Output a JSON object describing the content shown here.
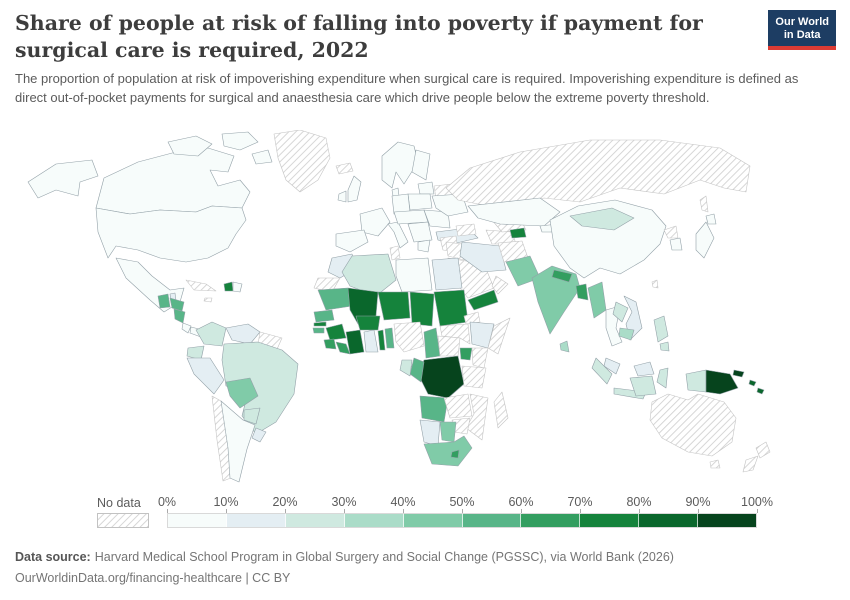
{
  "header": {
    "title": "Share of people at risk of falling into poverty if payment for surgical care is required, 2022",
    "subtitle": "The proportion of population at risk of impoverishing expenditure when surgical care is required. Impoverishing expenditure is defined as direct out-of-pocket payments for surgical and anaesthesia care which drive people below the extreme poverty threshold."
  },
  "logo": {
    "line1": "Our World",
    "line2": "in Data",
    "bg": "#1d3d63",
    "accent": "#dc3b33"
  },
  "legend": {
    "no_data_label": "No data",
    "tick_labels": [
      "0%",
      "10%",
      "20%",
      "30%",
      "40%",
      "50%",
      "60%",
      "70%",
      "80%",
      "90%",
      "100%"
    ],
    "colors": [
      "#f7fcfb",
      "#e4eef3",
      "#cfe9e0",
      "#aadcc8",
      "#80cba8",
      "#58b588",
      "#339e60",
      "#15833c",
      "#0a672c",
      "#06441d"
    ]
  },
  "footer": {
    "source_label": "Data source:",
    "source_text": "Harvard Medical School Program in Global Surgery and Social Change (PGSSC), via World Bank (2026)",
    "link_text": "OurWorldinData.org/financing-healthcare | CC BY"
  },
  "chart_data": {
    "type": "choropleth",
    "title": "Share of people at risk of falling into poverty if payment for surgical care is required",
    "year": 2022,
    "unit": "%",
    "legend_bins": [
      0,
      10,
      20,
      30,
      40,
      50,
      60,
      70,
      80,
      90,
      100
    ],
    "countries": {
      "United States": 2,
      "Canada": 2,
      "Greenland": null,
      "Iceland": null,
      "Mexico": 5,
      "Belize": 15,
      "Guatemala": 52,
      "Honduras": 52,
      "Nicaragua": 52,
      "Costa Rica": 8,
      "Panama": 8,
      "Cuba": null,
      "Jamaica": null,
      "Haiti": 75,
      "Dominican Republic": 3,
      "Colombia": 22,
      "Venezuela": 12,
      "Guyana": null,
      "Ecuador": 25,
      "Peru": 12,
      "Brazil": 25,
      "Bolivia": 45,
      "Paraguay": 25,
      "Uruguay": 15,
      "Chile": null,
      "Argentina": 3,
      "United Kingdom": 2,
      "Ireland": 2,
      "Norway": 1,
      "Sweden": 1,
      "Finland": 1,
      "Denmark": 1,
      "Baltic states": 3,
      "Belarus": null,
      "Poland": 2,
      "Germany": 1,
      "France": 2,
      "Spain": 2,
      "Italy": 2,
      "Central Europe": 2,
      "Balkans": 3,
      "Romania": 3,
      "Ukraine": 3,
      "Greece": 2,
      "Russia": null,
      "Turkey": 12,
      "Levant": null,
      "Caucasus": null,
      "Iraq": null,
      "Saudi Arabia": null,
      "Yemen": 75,
      "Oman": null,
      "Iran": 18,
      "Kazakhstan": 3,
      "Turkmenistan": null,
      "Uzbekistan": null,
      "Kyrgyzstan": 5,
      "Tajikistan": 75,
      "Afghanistan": null,
      "Pakistan": 45,
      "India": 45,
      "Nepal": 65,
      "Bangladesh": 65,
      "Sri Lanka": 35,
      "Myanmar": 45,
      "China": 2,
      "Mongolia": 25,
      "North Korea": null,
      "South Korea": 3,
      "Japan": 2,
      "Taiwan": null,
      "Thailand": 2,
      "Laos": 25,
      "Vietnam": 12,
      "Cambodia": 35,
      "Malaysia": 12,
      "Philippines": 25,
      "Indonesia": 25,
      "Papua New Guinea": 95,
      "Solomon Islands": 85,
      "Australia": null,
      "New Zealand": null,
      "Morocco": 15,
      "Western Sahara": null,
      "Algeria": 25,
      "Tunisia": null,
      "Libya": 3,
      "Egypt": 15,
      "Mauritania": 55,
      "Mali": 85,
      "Niger": 75,
      "Chad": 75,
      "Sudan": 75,
      "Eritrea": null,
      "Senegal": 55,
      "Gambia": 75,
      "Guinea-Bissau": 55,
      "Guinea": 75,
      "Sierra Leone": 65,
      "Liberia": 65,
      "Cote d'Ivoire": 85,
      "Ghana": 15,
      "Togo": 75,
      "Benin": 55,
      "Burkina Faso": 75,
      "Nigeria": null,
      "Cameroon": 55,
      "Central African Republic": null,
      "South Sudan": null,
      "Ethiopia": 15,
      "Somalia": null,
      "Uganda": 65,
      "Kenya": null,
      "Democratic Republic of Congo": 95,
      "Congo": 55,
      "Gabon": 20,
      "Tanzania": null,
      "Angola": 55,
      "Zambia": null,
      "Mozambique": null,
      "Zimbabwe": null,
      "Botswana": 45,
      "Namibia": 15,
      "South Africa": 45,
      "Lesotho": 65,
      "Madagascar": null
    }
  }
}
